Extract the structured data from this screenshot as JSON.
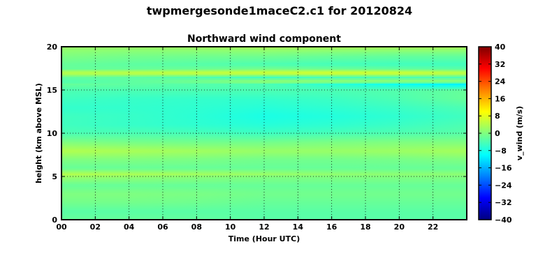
{
  "chart_data": {
    "type": "heatmap",
    "suptitle": "twpmergesonde1maceC2.c1 for 20120824",
    "title": "Northward wind component",
    "xlabel": "Time (Hour UTC)",
    "ylabel": "height (km above MSL)",
    "xlim": [
      0,
      24
    ],
    "ylim": [
      0,
      20
    ],
    "x_ticks": [
      0,
      2,
      4,
      6,
      8,
      10,
      12,
      14,
      16,
      18,
      20,
      22
    ],
    "x_tick_labels": [
      "00",
      "02",
      "04",
      "06",
      "08",
      "10",
      "12",
      "14",
      "16",
      "18",
      "20",
      "22"
    ],
    "y_ticks": [
      0,
      5,
      10,
      15,
      20
    ],
    "y_tick_labels": [
      "0",
      "5",
      "10",
      "15",
      "20"
    ],
    "grid": true,
    "colormap": "jet",
    "colorbar": {
      "label": "v_wind (m/s)",
      "range": [
        -40,
        40
      ],
      "ticks": [
        40,
        32,
        24,
        16,
        8,
        0,
        -8,
        -16,
        -24,
        -32,
        -40
      ],
      "tick_labels": [
        "40",
        "32",
        "24",
        "16",
        "8",
        "0",
        "−8",
        "−16",
        "−24",
        "−32",
        "−40"
      ]
    },
    "z": {
      "time_hours": [
        0,
        6,
        12,
        18,
        24
      ],
      "heights_km": [
        0,
        1,
        2,
        3,
        4,
        5,
        5.3,
        6,
        7,
        8,
        9,
        10,
        11,
        12,
        13,
        14,
        15,
        15.7,
        16,
        16.5,
        17,
        17.5,
        18,
        19,
        20
      ],
      "values": [
        [
          -2,
          -2,
          -3,
          -3,
          -3
        ],
        [
          -3,
          -3,
          -3,
          -3,
          -3
        ],
        [
          -1,
          -1,
          -2,
          -2,
          -2
        ],
        [
          0,
          0,
          -1,
          -1,
          -1
        ],
        [
          -2,
          -2,
          -2,
          -2,
          -2
        ],
        [
          2,
          1,
          0,
          0,
          0
        ],
        [
          4,
          3,
          2,
          1,
          1
        ],
        [
          -2,
          -2,
          -2,
          -2,
          -2
        ],
        [
          0,
          0,
          -1,
          -1,
          0
        ],
        [
          4,
          3,
          2,
          2,
          3
        ],
        [
          0,
          -1,
          -1,
          0,
          0
        ],
        [
          -4,
          -4,
          -5,
          -4,
          -3
        ],
        [
          -5,
          -6,
          -7,
          -6,
          -4
        ],
        [
          -5,
          -6,
          -8,
          -7,
          -5
        ],
        [
          -6,
          -6,
          -7,
          -6,
          -4
        ],
        [
          -5,
          -6,
          -6,
          -5,
          -2
        ],
        [
          -4,
          -4,
          -4,
          -4,
          -2
        ],
        [
          -2,
          -3,
          -4,
          -8,
          -11
        ],
        [
          -4,
          -2,
          2,
          2,
          2
        ],
        [
          -2,
          -3,
          -5,
          -4,
          -4
        ],
        [
          5,
          6,
          7,
          8,
          6
        ],
        [
          -2,
          -2,
          -1,
          -2,
          -3
        ],
        [
          -2,
          -3,
          -4,
          -5,
          -5
        ],
        [
          0,
          -1,
          -1,
          -2,
          -2
        ],
        [
          2,
          2,
          3,
          3,
          3
        ]
      ]
    }
  }
}
